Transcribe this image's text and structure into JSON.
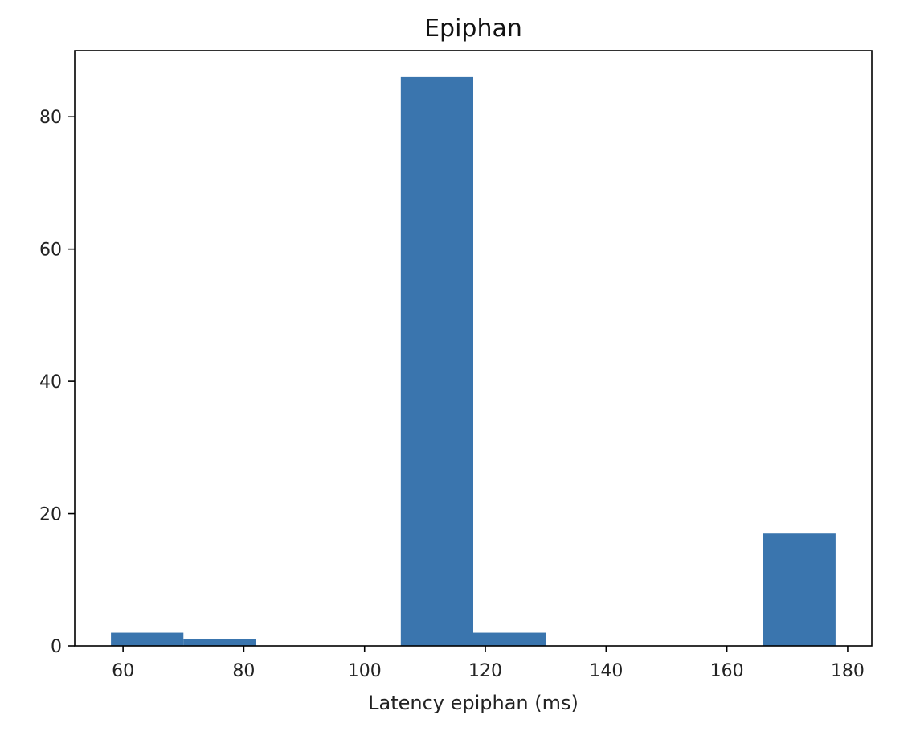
{
  "chart_data": {
    "type": "bar",
    "title": "Epiphan",
    "xlabel": "Latency epiphan (ms)",
    "ylabel": "",
    "xlim": [
      52,
      184
    ],
    "ylim": [
      0,
      90
    ],
    "xticks": [
      60,
      80,
      100,
      120,
      140,
      160,
      180
    ],
    "yticks": [
      0,
      20,
      40,
      60,
      80
    ],
    "bins": [
      {
        "x0": 58,
        "x1": 70,
        "value": 2
      },
      {
        "x0": 70,
        "x1": 82,
        "value": 1
      },
      {
        "x0": 82,
        "x1": 94,
        "value": 0
      },
      {
        "x0": 94,
        "x1": 106,
        "value": 0
      },
      {
        "x0": 106,
        "x1": 118,
        "value": 86
      },
      {
        "x0": 118,
        "x1": 130,
        "value": 2
      },
      {
        "x0": 130,
        "x1": 142,
        "value": 0
      },
      {
        "x0": 142,
        "x1": 154,
        "value": 0
      },
      {
        "x0": 154,
        "x1": 166,
        "value": 0
      },
      {
        "x0": 166,
        "x1": 178,
        "value": 17
      }
    ],
    "bar_color": "#3a75ae",
    "grid": false,
    "legend": "none"
  }
}
